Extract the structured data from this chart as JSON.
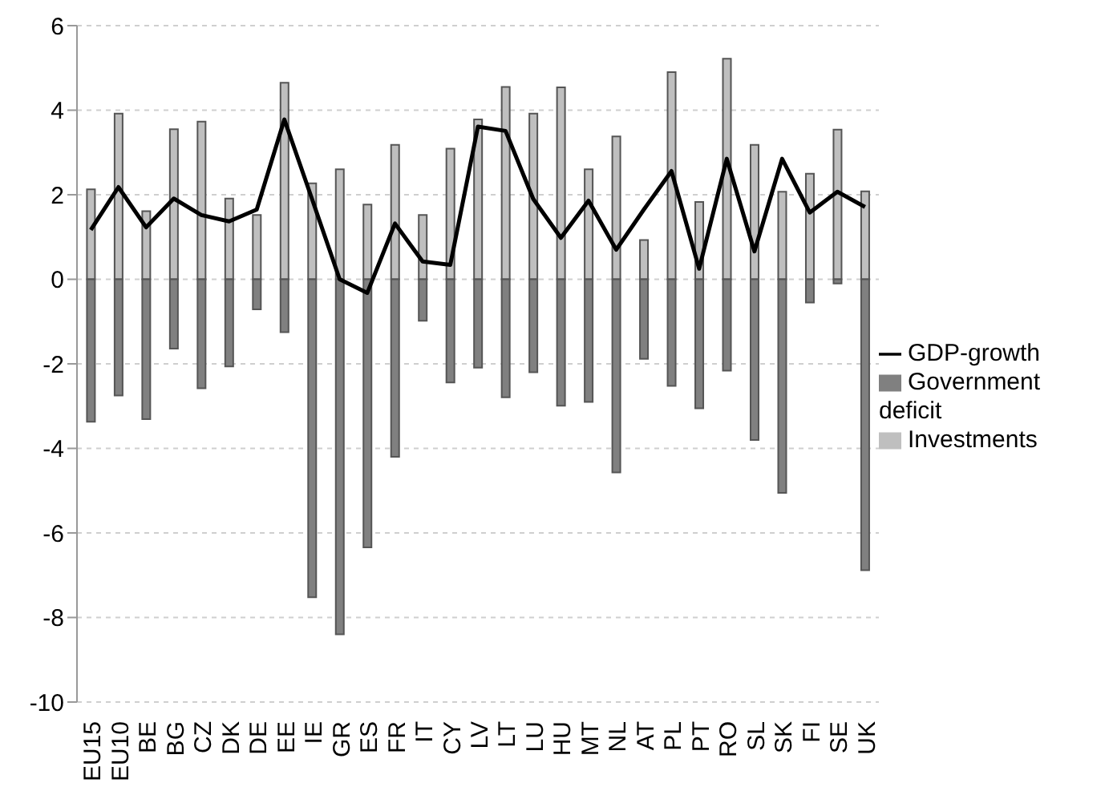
{
  "chart_data": {
    "type": "bar",
    "stacked": true,
    "categories": [
      "EU15",
      "EU10",
      "BE",
      "BG",
      "CZ",
      "DK",
      "DE",
      "EE",
      "IE",
      "GR",
      "ES",
      "FR",
      "IT",
      "CY",
      "LV",
      "LT",
      "LU",
      "HU",
      "MT",
      "NL",
      "AT",
      "PL",
      "PT",
      "RO",
      "SL",
      "SK",
      "FI",
      "SE",
      "UK"
    ],
    "series": [
      {
        "name": "Investments",
        "color": "#bfbfbf",
        "values": [
          2.13,
          3.92,
          1.61,
          3.55,
          3.73,
          1.91,
          1.52,
          4.65,
          2.27,
          2.6,
          1.77,
          3.18,
          1.52,
          3.09,
          3.78,
          4.55,
          3.92,
          4.54,
          2.6,
          3.38,
          0.93,
          4.9,
          1.83,
          5.22,
          3.18,
          2.07,
          2.5,
          3.54,
          2.08
        ]
      },
      {
        "name": "Government deficit",
        "color": "#808080",
        "values": [
          -3.37,
          -2.75,
          -3.31,
          -1.64,
          -2.58,
          -2.06,
          -0.71,
          -1.25,
          -7.52,
          -8.4,
          -6.34,
          -4.2,
          -0.98,
          -2.44,
          -2.09,
          -2.79,
          -2.2,
          -2.99,
          -2.9,
          -4.57,
          -1.88,
          -2.52,
          -3.05,
          -2.16,
          -3.8,
          -5.05,
          -0.55,
          -0.1,
          -6.88
        ]
      },
      {
        "name": "GDP-growth",
        "type": "line",
        "color": "#000000",
        "marker": "none",
        "values": [
          1.17,
          2.18,
          1.23,
          1.91,
          1.52,
          1.37,
          1.65,
          3.78,
          1.9,
          0,
          -0.32,
          1.32,
          0.42,
          0.34,
          3.61,
          3.51,
          1.9,
          0.98,
          1.86,
          0.7,
          1.65,
          2.56,
          0.25,
          2.85,
          0.66,
          2.85,
          1.58,
          2.07,
          1.71
        ]
      }
    ],
    "ylim": [
      -10,
      6
    ],
    "yticks": [
      -10,
      -8,
      -6,
      -4,
      -2,
      0,
      2,
      4,
      6
    ],
    "grid": "y",
    "legend": "right"
  }
}
